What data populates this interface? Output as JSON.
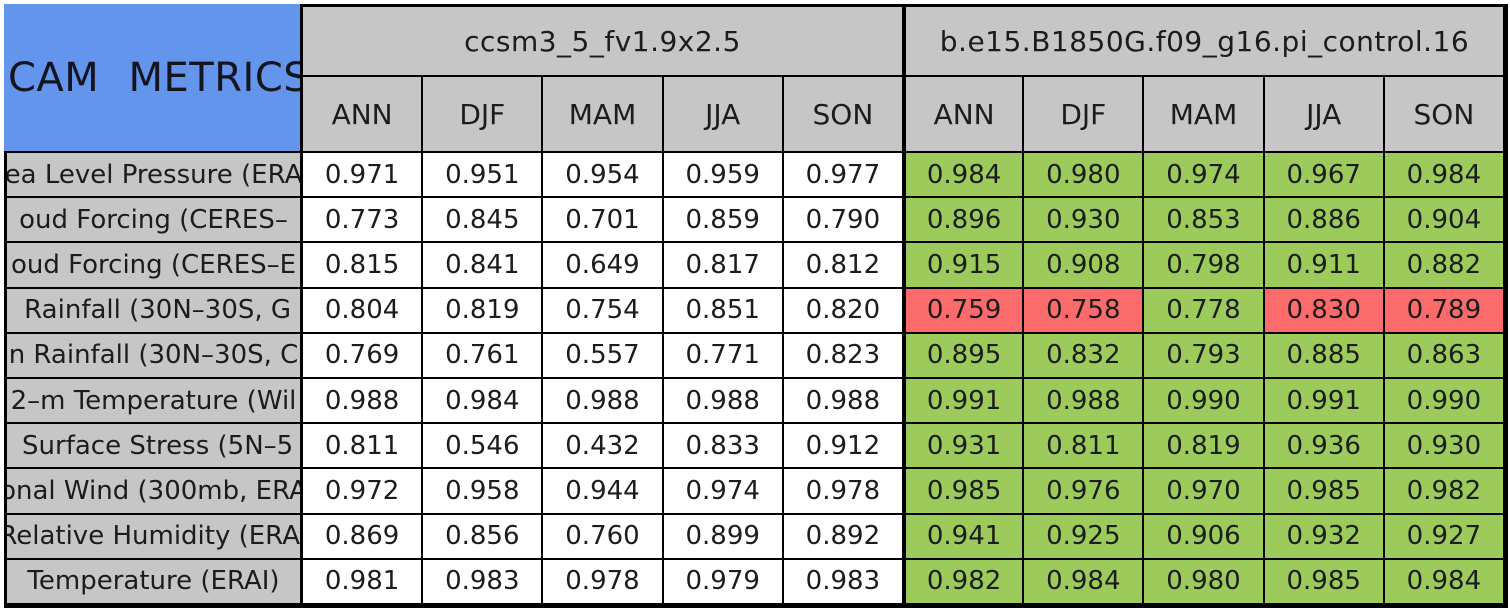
{
  "colors": {
    "title_bg_blue": "#6495ED",
    "header_gray": "#C6C6C6",
    "improved_green": "#9CCB5B",
    "degraded_red": "#FB6B6B",
    "baseline_cell_white": "#FFFFFF",
    "border_black": "#000000"
  },
  "chart_data": {
    "type": "table",
    "title": "CAM METRICS",
    "column_groups": [
      {
        "name": "ccsm3_5_fv1.9x2.5",
        "columns": [
          "ANN",
          "DJF",
          "MAM",
          "JJA",
          "SON"
        ]
      },
      {
        "name": "b.e15.B1850G.f09_g16.pi_control.16",
        "columns": [
          "ANN",
          "DJF",
          "MAM",
          "JJA",
          "SON"
        ]
      }
    ],
    "rows": [
      {
        "label": "ea Level Pressure (ERA",
        "ccsm3_5": [
          "0.971",
          "0.951",
          "0.954",
          "0.959",
          "0.977"
        ],
        "b_e15": [
          "0.984",
          "0.980",
          "0.974",
          "0.967",
          "0.984"
        ],
        "b_e15_colors": [
          "green",
          "green",
          "green",
          "green",
          "green"
        ]
      },
      {
        "label": "oud Forcing (CERES–",
        "ccsm3_5": [
          "0.773",
          "0.845",
          "0.701",
          "0.859",
          "0.790"
        ],
        "b_e15": [
          "0.896",
          "0.930",
          "0.853",
          "0.886",
          "0.904"
        ],
        "b_e15_colors": [
          "green",
          "green",
          "green",
          "green",
          "green"
        ]
      },
      {
        "label": "oud Forcing (CERES–E",
        "ccsm3_5": [
          "0.815",
          "0.841",
          "0.649",
          "0.817",
          "0.812"
        ],
        "b_e15": [
          "0.915",
          "0.908",
          "0.798",
          "0.911",
          "0.882"
        ],
        "b_e15_colors": [
          "green",
          "green",
          "green",
          "green",
          "green"
        ]
      },
      {
        "label": " Rainfall (30N–30S, G",
        "ccsm3_5": [
          "0.804",
          "0.819",
          "0.754",
          "0.851",
          "0.820"
        ],
        "b_e15": [
          "0.759",
          "0.758",
          "0.778",
          "0.830",
          "0.789"
        ],
        "b_e15_colors": [
          "red",
          "red",
          "green",
          "red",
          "red"
        ]
      },
      {
        "label": "n Rainfall (30N–30S, C",
        "ccsm3_5": [
          "0.769",
          "0.761",
          "0.557",
          "0.771",
          "0.823"
        ],
        "b_e15": [
          "0.895",
          "0.832",
          "0.793",
          "0.885",
          "0.863"
        ],
        "b_e15_colors": [
          "green",
          "green",
          "green",
          "green",
          "green"
        ]
      },
      {
        "label": "2–m Temperature (Wil",
        "ccsm3_5": [
          "0.988",
          "0.984",
          "0.988",
          "0.988",
          "0.988"
        ],
        "b_e15": [
          "0.991",
          "0.988",
          "0.990",
          "0.991",
          "0.990"
        ],
        "b_e15_colors": [
          "green",
          "green",
          "green",
          "green",
          "green"
        ]
      },
      {
        "label": " Surface Stress (5N–5",
        "ccsm3_5": [
          "0.811",
          "0.546",
          "0.432",
          "0.833",
          "0.912"
        ],
        "b_e15": [
          "0.931",
          "0.811",
          "0.819",
          "0.936",
          "0.930"
        ],
        "b_e15_colors": [
          "green",
          "green",
          "green",
          "green",
          "green"
        ]
      },
      {
        "label": "onal Wind (300mb, ERA",
        "ccsm3_5": [
          "0.972",
          "0.958",
          "0.944",
          "0.974",
          "0.978"
        ],
        "b_e15": [
          "0.985",
          "0.976",
          "0.970",
          "0.985",
          "0.982"
        ],
        "b_e15_colors": [
          "green",
          "green",
          "green",
          "green",
          "green"
        ]
      },
      {
        "label": "Relative Humidity (ERAI",
        "ccsm3_5": [
          "0.869",
          "0.856",
          "0.760",
          "0.899",
          "0.892"
        ],
        "b_e15": [
          "0.941",
          "0.925",
          "0.906",
          "0.932",
          "0.927"
        ],
        "b_e15_colors": [
          "green",
          "green",
          "green",
          "green",
          "green"
        ]
      },
      {
        "label": "Temperature (ERAI)",
        "ccsm3_5": [
          "0.981",
          "0.983",
          "0.978",
          "0.979",
          "0.983"
        ],
        "b_e15": [
          "0.982",
          "0.984",
          "0.980",
          "0.985",
          "0.984"
        ],
        "b_e15_colors": [
          "green",
          "green",
          "green",
          "green",
          "green"
        ]
      }
    ]
  }
}
